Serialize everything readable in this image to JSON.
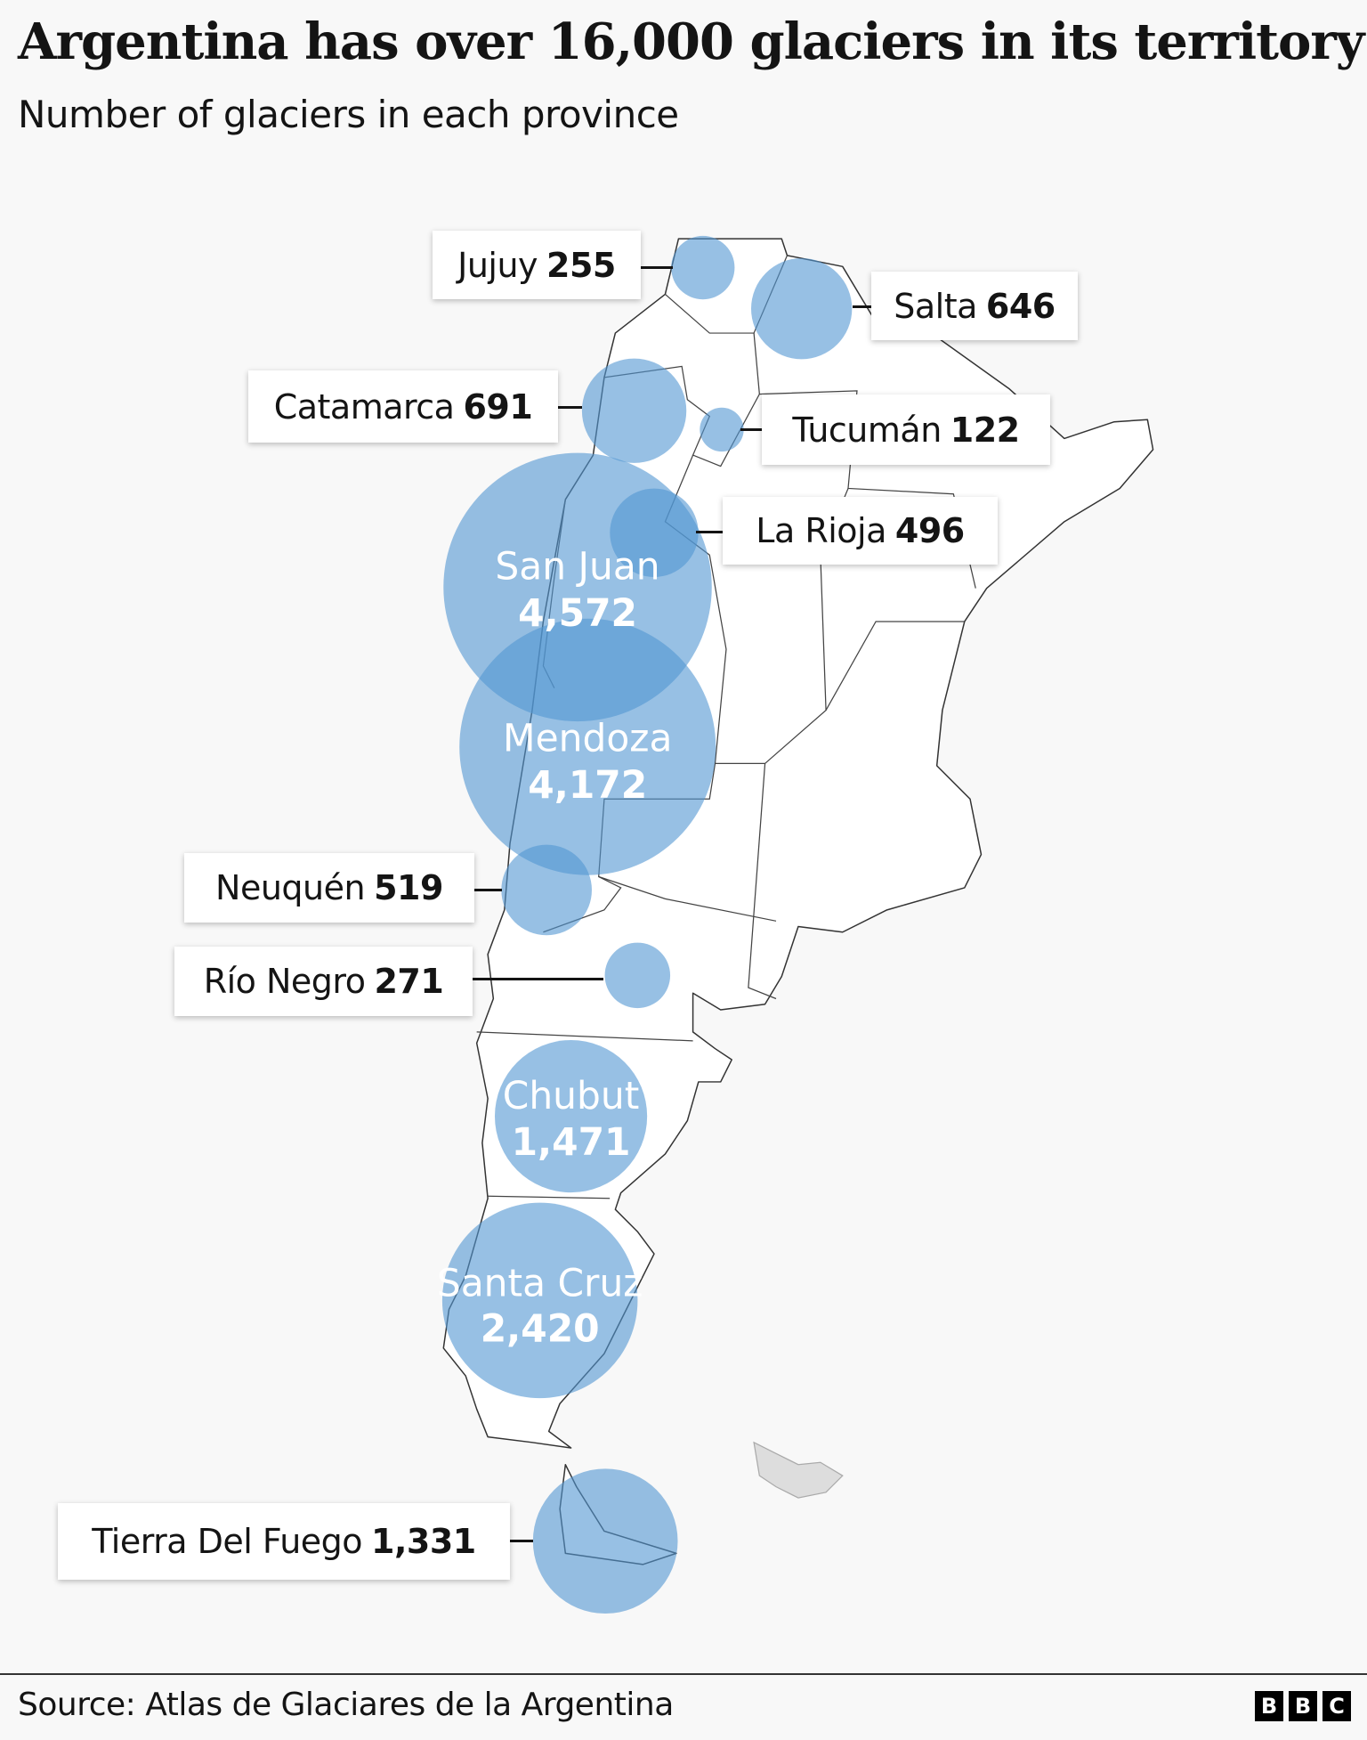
{
  "title": "Argentina has over 16,000 glaciers in its territory",
  "subtitle": "Number of glaciers in each province",
  "chart_data": {
    "type": "proportional-symbol-map",
    "title": "Argentina has over 16,000 glaciers in its territory",
    "subtitle": "Number of glaciers in each province",
    "bubble_color": "#94c0e4",
    "series": [
      {
        "province": "Jujuy",
        "value": 255,
        "value_label": "255"
      },
      {
        "province": "Salta",
        "value": 646,
        "value_label": "646"
      },
      {
        "province": "Catamarca",
        "value": 691,
        "value_label": "691"
      },
      {
        "province": "Tucumán",
        "value": 122,
        "value_label": "122"
      },
      {
        "province": "La Rioja",
        "value": 496,
        "value_label": "496"
      },
      {
        "province": "San Juan",
        "value": 4572,
        "value_label": "4,572"
      },
      {
        "province": "Mendoza",
        "value": 4172,
        "value_label": "4,172"
      },
      {
        "province": "Neuquén",
        "value": 519,
        "value_label": "519"
      },
      {
        "province": "Río Negro",
        "value": 271,
        "value_label": "271"
      },
      {
        "province": "Chubut",
        "value": 1471,
        "value_label": "1,471"
      },
      {
        "province": "Santa Cruz",
        "value": 2420,
        "value_label": "2,420"
      },
      {
        "province": "Tierra Del Fuego",
        "value": 1331,
        "value_label": "1,331"
      }
    ]
  },
  "footer": {
    "source": "Source: Atlas de Glaciares de la Argentina",
    "logo": [
      "B",
      "B",
      "C"
    ]
  }
}
